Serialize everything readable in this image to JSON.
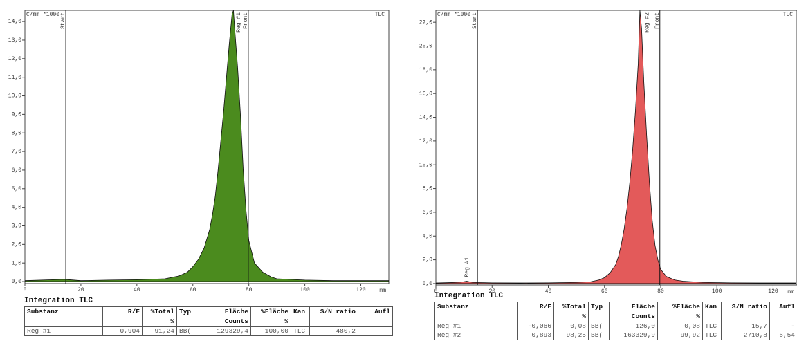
{
  "chart_data": [
    {
      "type": "area",
      "y_label": "C/mm *1000",
      "x_label": "mm",
      "channel": "TLC",
      "color": "#4b8b1e",
      "xlim": [
        0,
        130
      ],
      "ylim": [
        -0.11,
        14.6
      ],
      "xticks": [
        0,
        20,
        40,
        60,
        80,
        100,
        120
      ],
      "yticks": [
        {
          "value": 0,
          "label": "0,0"
        },
        {
          "value": 1,
          "label": "1,0"
        },
        {
          "value": 2,
          "label": "2,0"
        },
        {
          "value": 3,
          "label": "3,0"
        },
        {
          "value": 4,
          "label": "4,0"
        },
        {
          "value": 5,
          "label": "5,0"
        },
        {
          "value": 6,
          "label": "6,0"
        },
        {
          "value": 7,
          "label": "7,0"
        },
        {
          "value": 8,
          "label": "8,0"
        },
        {
          "value": 9,
          "label": "9,0"
        },
        {
          "value": 10,
          "label": "10,0"
        },
        {
          "value": 11,
          "label": "11,0"
        },
        {
          "value": 12,
          "label": "12,0"
        },
        {
          "value": 13,
          "label": "13,0"
        },
        {
          "value": 14,
          "label": "14,0"
        }
      ],
      "markers": [
        {
          "label": "Start",
          "x": 14.6
        },
        {
          "label": "Front",
          "x": 79.8
        }
      ],
      "regions": [
        {
          "label": "Reg #1",
          "x": 76.3
        }
      ],
      "series": [
        {
          "x": [
            0,
            10,
            14,
            20,
            30,
            40,
            50,
            55,
            58,
            60,
            62,
            64,
            66,
            67,
            68,
            69,
            70,
            71,
            72,
            73,
            74,
            74.5,
            75,
            76,
            77,
            78,
            79,
            80,
            82,
            85,
            88,
            90,
            100,
            110,
            120,
            130
          ],
          "values": [
            0.05,
            0.1,
            0.12,
            0.05,
            0.08,
            0.1,
            0.15,
            0.3,
            0.5,
            0.8,
            1.2,
            1.8,
            2.8,
            3.6,
            4.6,
            6.0,
            7.6,
            9.2,
            11.0,
            12.8,
            14.4,
            14.6,
            13.5,
            11.5,
            9.0,
            6.0,
            3.8,
            2.2,
            1.0,
            0.5,
            0.25,
            0.15,
            0.08,
            0.05,
            0.05,
            0.05
          ]
        }
      ]
    },
    {
      "type": "area",
      "y_label": "C/mm *1000",
      "x_label": "mm",
      "channel": "TLC",
      "color": "#e35a5a",
      "xlim": [
        0,
        128.5
      ],
      "ylim": [
        -0.12,
        23
      ],
      "xticks": [
        0,
        20,
        40,
        60,
        80,
        100,
        120
      ],
      "yticks": [
        {
          "value": 0,
          "label": "0,0"
        },
        {
          "value": 2,
          "label": "2,0"
        },
        {
          "value": 4,
          "label": "4,0"
        },
        {
          "value": 6,
          "label": "6,0"
        },
        {
          "value": 8,
          "label": "8,0"
        },
        {
          "value": 10,
          "label": "10,0"
        },
        {
          "value": 12,
          "label": "12,0"
        },
        {
          "value": 14,
          "label": "14,0"
        },
        {
          "value": 16,
          "label": "16,0"
        },
        {
          "value": 18,
          "label": "18,0"
        },
        {
          "value": 20,
          "label": "20,0"
        },
        {
          "value": 22,
          "label": "22,0"
        }
      ],
      "markers": [
        {
          "label": "Start",
          "x": 14.8
        },
        {
          "label": "Front",
          "x": 79.7
        }
      ],
      "regions": [
        {
          "label": "Reg #1",
          "x": 11
        },
        {
          "label": "Reg #2",
          "x": 75.2
        }
      ],
      "series": [
        {
          "x": [
            0,
            5,
            9,
            11,
            13,
            20,
            30,
            40,
            50,
            55,
            58,
            60,
            62,
            64,
            65,
            66,
            67,
            68,
            69,
            70,
            71,
            72,
            72.6,
            73.2,
            74,
            75,
            76,
            77,
            78,
            79,
            80,
            82,
            85,
            88,
            95,
            105,
            115,
            128
          ],
          "values": [
            0.05,
            0.08,
            0.12,
            0.2,
            0.1,
            0.06,
            0.05,
            0.06,
            0.1,
            0.15,
            0.3,
            0.5,
            0.9,
            1.6,
            2.3,
            3.3,
            4.6,
            6.3,
            8.5,
            11.2,
            14.5,
            18.5,
            23,
            21.5,
            17,
            12.5,
            8.5,
            5.3,
            3.2,
            2.0,
            1.2,
            0.6,
            0.3,
            0.2,
            0.1,
            0.06,
            0.05,
            0.05
          ]
        }
      ]
    }
  ],
  "tables": [
    {
      "title": "Integration TLC",
      "header": [
        [
          "Substanz",
          "R/F",
          "%Total",
          "Typ",
          "Fläche",
          "%Fläche",
          "Kan",
          "S/N ratio",
          "Aufl"
        ],
        [
          null,
          null,
          "%",
          null,
          "Counts",
          "%",
          null,
          null,
          null
        ]
      ],
      "rows": [
        [
          "Reg #1",
          "0,904",
          "91,24",
          "BB(",
          "129329,4",
          "100,00",
          "TLC",
          "480,2",
          null
        ]
      ]
    },
    {
      "title": "Integration TLC",
      "header": [
        [
          "Substanz",
          "R/F",
          "%Total",
          "Typ",
          "Fläche",
          "%Fläche",
          "Kan",
          "S/N ratio",
          "Aufl"
        ],
        [
          null,
          null,
          "%",
          null,
          "Counts",
          "%",
          null,
          null,
          null
        ]
      ],
      "rows": [
        [
          "Reg #1",
          "-0,066",
          "0,08",
          "BB(",
          "126,0",
          "0,08",
          "TLC",
          "15,7",
          "-"
        ],
        [
          "Reg #2",
          "0,893",
          "98,25",
          "BB(",
          "163329,9",
          "99,92",
          "TLC",
          "2710,8",
          "6,54"
        ]
      ]
    }
  ]
}
